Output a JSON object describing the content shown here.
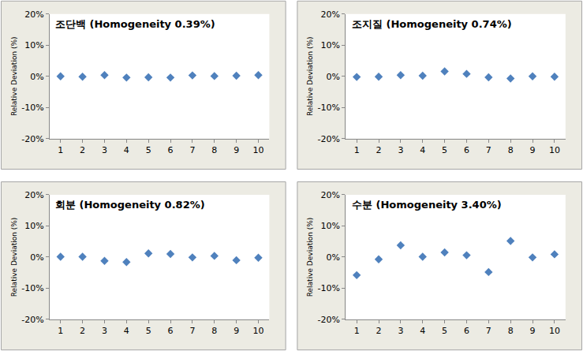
{
  "chart_data": [
    {
      "type": "scatter",
      "title": "조단백 (Homogeneity 0.39%)",
      "y_label": "Relative Deviation (%)",
      "x": [
        1,
        2,
        3,
        4,
        5,
        6,
        7,
        8,
        9,
        10
      ],
      "values": [
        0.0,
        -0.1,
        0.4,
        -0.4,
        -0.3,
        -0.4,
        0.3,
        0.1,
        0.2,
        0.4
      ],
      "color": "#4f81bd",
      "marker": "diamond",
      "xlim": [
        0.5,
        10.5
      ],
      "xticks": [
        1,
        2,
        3,
        4,
        5,
        6,
        7,
        8,
        9,
        10
      ],
      "ylim": [
        -20,
        20
      ],
      "yticks": [
        {
          "value": -20,
          "label": "-20%"
        },
        {
          "value": -10,
          "label": "-10%"
        },
        {
          "value": 0,
          "label": "0%"
        },
        {
          "value": 10,
          "label": "10%"
        },
        {
          "value": 20,
          "label": "20%"
        }
      ],
      "grid": false
    },
    {
      "type": "scatter",
      "title": "조지질 (Homogeneity 0.74%)",
      "y_label": "Relative Deviation (%)",
      "x": [
        1,
        2,
        3,
        4,
        5,
        6,
        7,
        8,
        9,
        10
      ],
      "values": [
        -0.2,
        -0.1,
        0.4,
        0.2,
        1.6,
        0.8,
        -0.3,
        -0.7,
        0.0,
        -0.1
      ],
      "color": "#4f81bd",
      "marker": "diamond",
      "xlim": [
        0.5,
        10.5
      ],
      "xticks": [
        1,
        2,
        3,
        4,
        5,
        6,
        7,
        8,
        9,
        10
      ],
      "ylim": [
        -20,
        20
      ],
      "yticks": [
        {
          "value": -20,
          "label": "-20%"
        },
        {
          "value": -10,
          "label": "-10%"
        },
        {
          "value": 0,
          "label": "0%"
        },
        {
          "value": 10,
          "label": "10%"
        },
        {
          "value": 20,
          "label": "20%"
        }
      ],
      "grid": false
    },
    {
      "type": "scatter",
      "title": "회분 (Homogeneity 0.82%)",
      "y_label": "Relative Deviation (%)",
      "x": [
        1,
        2,
        3,
        4,
        5,
        6,
        7,
        8,
        9,
        10
      ],
      "values": [
        0.1,
        0.1,
        -1.2,
        -1.6,
        1.2,
        1.0,
        -0.1,
        0.4,
        -1.0,
        -0.2
      ],
      "color": "#4f81bd",
      "marker": "diamond",
      "xlim": [
        0.5,
        10.5
      ],
      "xticks": [
        1,
        2,
        3,
        4,
        5,
        6,
        7,
        8,
        9,
        10
      ],
      "ylim": [
        -20,
        20
      ],
      "yticks": [
        {
          "value": -20,
          "label": "-20%"
        },
        {
          "value": -10,
          "label": "-10%"
        },
        {
          "value": 0,
          "label": "0%"
        },
        {
          "value": 10,
          "label": "10%"
        },
        {
          "value": 20,
          "label": "20%"
        }
      ],
      "grid": false
    },
    {
      "type": "scatter",
      "title": "수분 (Homogeneity 3.40%)",
      "y_label": "Relative Deviation (%)",
      "x": [
        1,
        2,
        3,
        4,
        5,
        6,
        7,
        8,
        9,
        10
      ],
      "values": [
        -5.8,
        -0.7,
        3.8,
        0.1,
        1.5,
        0.6,
        -4.8,
        5.2,
        -0.1,
        0.9
      ],
      "color": "#4f81bd",
      "marker": "diamond",
      "xlim": [
        0.5,
        10.5
      ],
      "xticks": [
        1,
        2,
        3,
        4,
        5,
        6,
        7,
        8,
        9,
        10
      ],
      "ylim": [
        -20,
        20
      ],
      "yticks": [
        {
          "value": -20,
          "label": "-20%"
        },
        {
          "value": -10,
          "label": "-10%"
        },
        {
          "value": 0,
          "label": "0%"
        },
        {
          "value": 10,
          "label": "10%"
        },
        {
          "value": 20,
          "label": "20%"
        }
      ],
      "grid": false
    }
  ]
}
